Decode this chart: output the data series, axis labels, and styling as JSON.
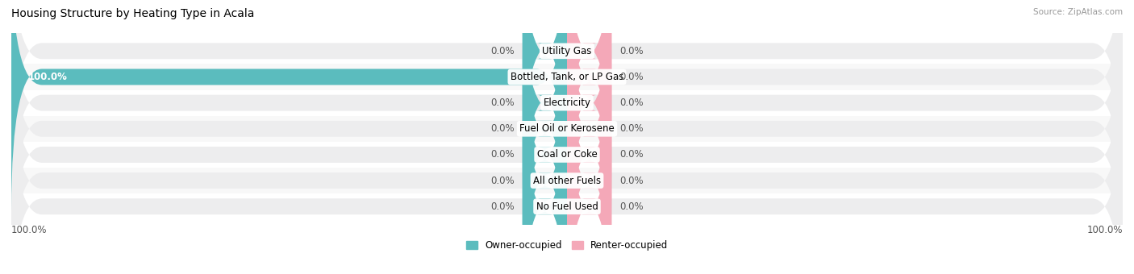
{
  "title": "Housing Structure by Heating Type in Acala",
  "source": "Source: ZipAtlas.com",
  "categories": [
    "Utility Gas",
    "Bottled, Tank, or LP Gas",
    "Electricity",
    "Fuel Oil or Kerosene",
    "Coal or Coke",
    "All other Fuels",
    "No Fuel Used"
  ],
  "owner_values": [
    0.0,
    100.0,
    0.0,
    0.0,
    0.0,
    0.0,
    0.0
  ],
  "renter_values": [
    0.0,
    0.0,
    0.0,
    0.0,
    0.0,
    0.0,
    0.0
  ],
  "owner_color": "#5bbcbe",
  "renter_color": "#f4a8b8",
  "bar_bg_color": "#ededee",
  "bar_min_display": 8,
  "bar_height": 0.62,
  "xlim_left": -100,
  "xlim_right": 100,
  "owner_label": "Owner-occupied",
  "renter_label": "Renter-occupied",
  "title_fontsize": 10,
  "label_fontsize": 8.5,
  "tick_fontsize": 8.5,
  "figsize": [
    14.06,
    3.4
  ],
  "dpi": 100,
  "bg_between_color": "#f5f5f5",
  "row_sep_color": "#e0e0e0"
}
